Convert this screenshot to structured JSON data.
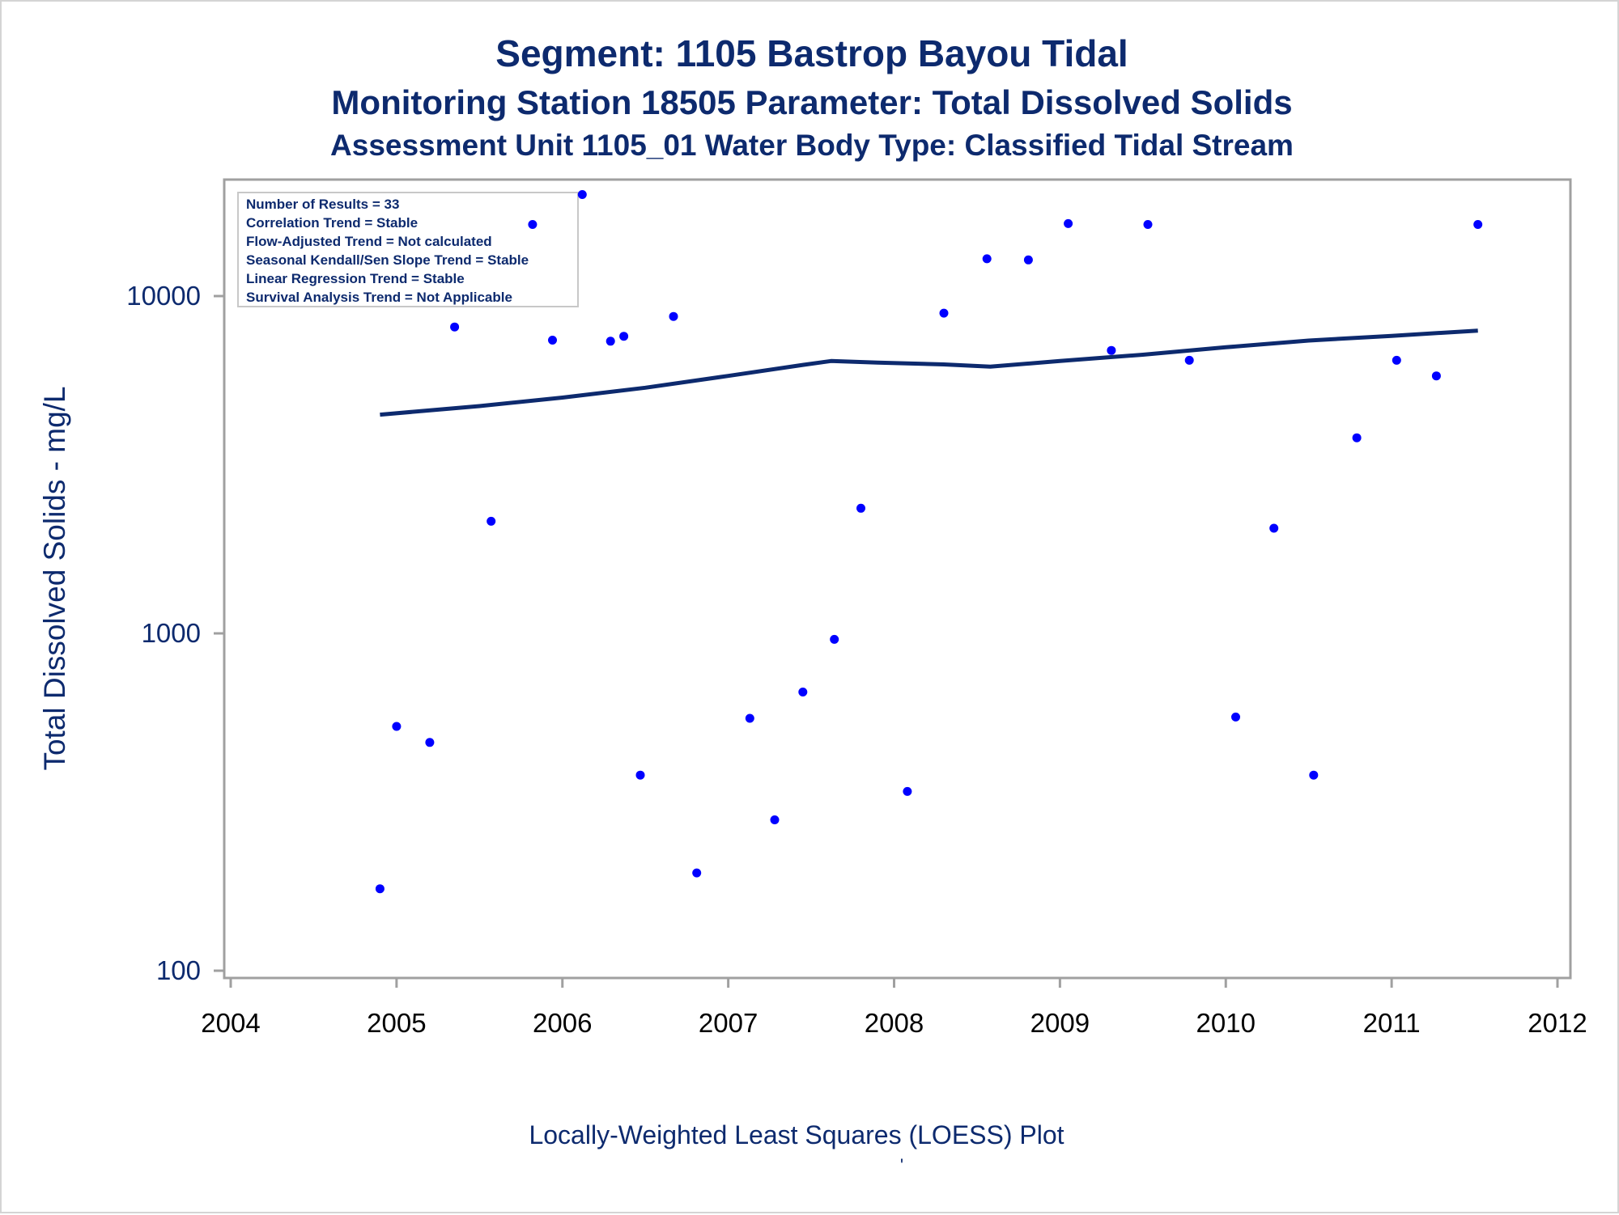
{
  "chart_data": {
    "type": "scatter",
    "title": "Segment: 1105  Bastrop Bayou Tidal",
    "subtitle": "Monitoring Station 18505 Parameter: Total Dissolved Solids",
    "subtitle2": "Assessment Unit 1105_01   Water Body Type: Classified Tidal Stream",
    "xlabel": "Locally-Weighted Least Squares (LOESS) Plot",
    "ylabel": "Total Dissolved Solids - mg/L",
    "footnote": "'",
    "x_ticks": [
      "2004",
      "2005",
      "2006",
      "2007",
      "2008",
      "2009",
      "2010",
      "2011",
      "2012"
    ],
    "y_ticks": [
      "100",
      "1000",
      "10000"
    ],
    "xlim": [
      2004,
      2012
    ],
    "ylim": [
      100,
      20000
    ],
    "y_scale": "log",
    "grid": false,
    "inset_position": "top-left",
    "inset_lines": [
      "Number of Results = 33",
      "Correlation Trend = Stable",
      "Flow-Adjusted Trend = Not calculated",
      "Seasonal Kendall/Sen Slope Trend = Stable",
      "Linear Regression Trend = Stable",
      "Survival Analysis Trend = Not Applicable"
    ],
    "points": [
      {
        "x": 2004.9,
        "y": 175
      },
      {
        "x": 2005.0,
        "y": 530
      },
      {
        "x": 2005.2,
        "y": 475
      },
      {
        "x": 2005.35,
        "y": 8100
      },
      {
        "x": 2005.57,
        "y": 2150
      },
      {
        "x": 2005.82,
        "y": 16300
      },
      {
        "x": 2005.94,
        "y": 7400
      },
      {
        "x": 2006.12,
        "y": 20000
      },
      {
        "x": 2006.29,
        "y": 7350
      },
      {
        "x": 2006.37,
        "y": 7600
      },
      {
        "x": 2006.47,
        "y": 380
      },
      {
        "x": 2006.67,
        "y": 8700
      },
      {
        "x": 2006.81,
        "y": 195
      },
      {
        "x": 2007.13,
        "y": 560
      },
      {
        "x": 2007.28,
        "y": 280
      },
      {
        "x": 2007.45,
        "y": 670
      },
      {
        "x": 2007.64,
        "y": 960
      },
      {
        "x": 2007.8,
        "y": 2350
      },
      {
        "x": 2008.08,
        "y": 340
      },
      {
        "x": 2008.3,
        "y": 8900
      },
      {
        "x": 2008.56,
        "y": 12900
      },
      {
        "x": 2008.81,
        "y": 12800
      },
      {
        "x": 2009.05,
        "y": 16400
      },
      {
        "x": 2009.31,
        "y": 6900
      },
      {
        "x": 2009.53,
        "y": 16300
      },
      {
        "x": 2009.78,
        "y": 6450
      },
      {
        "x": 2010.06,
        "y": 565
      },
      {
        "x": 2010.29,
        "y": 2050
      },
      {
        "x": 2010.53,
        "y": 380
      },
      {
        "x": 2010.79,
        "y": 3800
      },
      {
        "x": 2011.03,
        "y": 6450
      },
      {
        "x": 2011.27,
        "y": 5800
      },
      {
        "x": 2011.52,
        "y": 16300
      }
    ],
    "loess": [
      {
        "x": 2004.9,
        "y": 4450
      },
      {
        "x": 2005.5,
        "y": 4720
      },
      {
        "x": 2006.0,
        "y": 5000
      },
      {
        "x": 2006.5,
        "y": 5350
      },
      {
        "x": 2007.0,
        "y": 5800
      },
      {
        "x": 2007.45,
        "y": 6250
      },
      {
        "x": 2007.62,
        "y": 6420
      },
      {
        "x": 2007.9,
        "y": 6350
      },
      {
        "x": 2008.3,
        "y": 6270
      },
      {
        "x": 2008.58,
        "y": 6180
      },
      {
        "x": 2009.0,
        "y": 6420
      },
      {
        "x": 2009.5,
        "y": 6700
      },
      {
        "x": 2010.0,
        "y": 7050
      },
      {
        "x": 2010.5,
        "y": 7380
      },
      {
        "x": 2011.0,
        "y": 7620
      },
      {
        "x": 2011.52,
        "y": 7900
      }
    ],
    "colors": {
      "points": "#0000ff",
      "line": "#0d2a6e",
      "text": "#0d2a6e",
      "frame": "#a0a0a0"
    }
  }
}
